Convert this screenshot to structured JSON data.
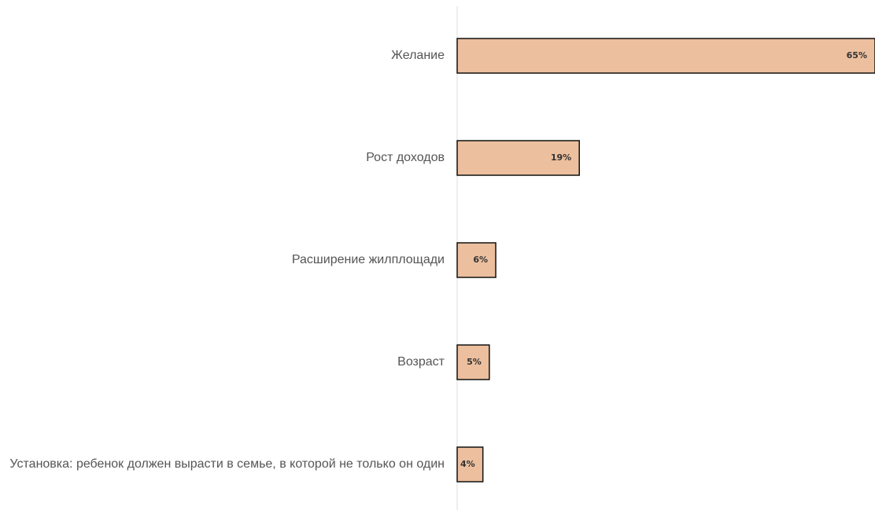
{
  "chart_data": {
    "type": "barh",
    "categories": [
      "Желание",
      "Рост доходов",
      "Расширение жилплощади",
      "Возраст",
      "Установка: ребенок должен вырасти в семье, в которой не только он один"
    ],
    "values": [
      65,
      19,
      6,
      5,
      4
    ],
    "value_labels": [
      "65%",
      "19%",
      "6%",
      "5%",
      "4%"
    ],
    "color": "#ecbf9e",
    "xlim": [
      0,
      65
    ]
  }
}
